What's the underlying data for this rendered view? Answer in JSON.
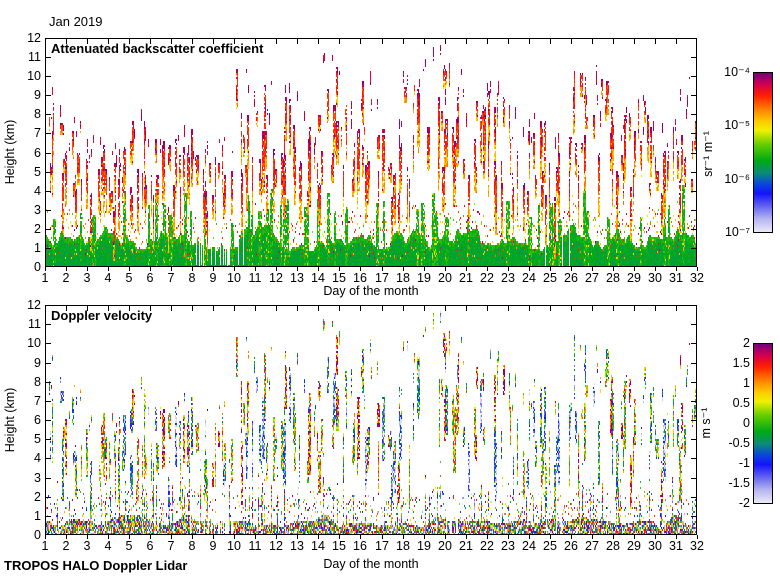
{
  "figure": {
    "suptitle": "Jan 2019",
    "footer": "TROPOS HALO Doppler Lidar",
    "background": "#ffffff"
  },
  "axes": {
    "xlabel": "Day of the month",
    "ylabel": "Height (km)",
    "x_tick_labels": [
      1,
      2,
      3,
      4,
      5,
      6,
      7,
      8,
      9,
      10,
      11,
      12,
      13,
      14,
      15,
      16,
      17,
      18,
      19,
      20,
      21,
      22,
      23,
      24,
      25,
      26,
      27,
      28,
      29,
      30,
      31,
      32
    ],
    "y_tick_labels": [
      0,
      1,
      2,
      3,
      4,
      5,
      6,
      7,
      8,
      9,
      10,
      11,
      12
    ],
    "x_range": [
      1,
      32
    ],
    "y_range": [
      0,
      12
    ]
  },
  "panels": [
    {
      "title": "Attenuated backscatter coefficient",
      "colorbar": {
        "unit": "sr⁻¹ m⁻¹",
        "scale": "log10",
        "tick_labels": [
          "10⁻⁴",
          "10⁻⁵",
          "10⁻⁶",
          "10⁻⁷"
        ],
        "range": [
          "1e-7",
          "1e-4"
        ]
      }
    },
    {
      "title": "Doppler velocity",
      "colorbar": {
        "unit": "m s⁻¹",
        "scale": "linear",
        "tick_labels": [
          "2",
          "1.5",
          "1",
          "0.5",
          "0",
          "-0.5",
          "-1",
          "-1.5",
          "-2"
        ],
        "range": [
          -2,
          2
        ]
      }
    }
  ],
  "colormap": {
    "stops": [
      [
        0.0,
        "#EAE6F6"
      ],
      [
        0.08,
        "#B4B4F0"
      ],
      [
        0.16,
        "#6464F0"
      ],
      [
        0.24,
        "#1414FA"
      ],
      [
        0.3,
        "#0A46DC"
      ],
      [
        0.37,
        "#0A8C78"
      ],
      [
        0.45,
        "#00AA14"
      ],
      [
        0.55,
        "#64CC00"
      ],
      [
        0.64,
        "#F0F000"
      ],
      [
        0.7,
        "#FFC800"
      ],
      [
        0.78,
        "#FF7800"
      ],
      [
        0.86,
        "#FF1E00"
      ],
      [
        0.93,
        "#D20050"
      ],
      [
        1.0,
        "#780078"
      ]
    ]
  },
  "chart_data": {
    "type": "heatmap",
    "title": "Jan 2019",
    "xlabel": "Day of the month",
    "ylabel": "Height (km)",
    "x_range": [
      1,
      32
    ],
    "y_range": [
      0,
      12
    ],
    "grid": false,
    "instrument": "TROPOS HALO Doppler Lidar",
    "days": [
      1,
      2,
      3,
      4,
      5,
      6,
      7,
      8,
      9,
      10,
      11,
      12,
      13,
      14,
      15,
      16,
      17,
      18,
      19,
      20,
      21,
      22,
      23,
      24,
      25,
      26,
      27,
      28,
      29,
      30,
      31
    ],
    "cloud_top_km": [
      9.3,
      8.0,
      7.0,
      6.5,
      8.0,
      7.2,
      7.5,
      6.5,
      7.0,
      10.5,
      10.0,
      9.5,
      8.0,
      11.2,
      9.0,
      10.0,
      8.0,
      10.0,
      11.5,
      11.0,
      9.0,
      9.5,
      8.5,
      8.0,
      7.5,
      10.5,
      10.2,
      8.5,
      9.0,
      8.0,
      10.0
    ],
    "cloud_cover": [
      0.6,
      0.6,
      0.5,
      0.5,
      0.6,
      0.6,
      0.5,
      0.4,
      0.2,
      0.55,
      0.6,
      0.6,
      0.5,
      0.5,
      0.6,
      0.5,
      0.5,
      0.6,
      0.5,
      0.45,
      0.5,
      0.5,
      0.5,
      0.5,
      0.35,
      0.5,
      0.6,
      0.6,
      0.5,
      0.45,
      0.6
    ],
    "aerosol_top_km": [
      1.8,
      1.6,
      1.5,
      1.6,
      1.7,
      1.9,
      1.6,
      1.3,
      0.8,
      2.2,
      1.8,
      1.6,
      1.5,
      1.6,
      1.8,
      1.7,
      1.6,
      1.8,
      1.6,
      1.4,
      1.5,
      1.6,
      1.8,
      1.6,
      1.4,
      2.0,
      1.8,
      1.7,
      1.6,
      1.5,
      1.8
    ],
    "aerosol_cover": [
      1,
      1,
      1,
      1,
      1,
      1,
      1,
      0.85,
      0.45,
      1,
      1,
      1,
      1,
      1,
      1,
      1,
      1,
      1,
      1,
      0.9,
      1,
      1,
      1,
      1,
      0.9,
      1,
      1,
      1,
      1,
      1,
      1
    ],
    "panels": [
      {
        "name": "attenuated_backscatter_coefficient",
        "unit": "sr⁻¹ m⁻¹",
        "scale": "log10",
        "value_range": [
          "1e-7",
          "1e-4"
        ]
      },
      {
        "name": "doppler_velocity",
        "unit": "m s⁻¹",
        "scale": "linear",
        "value_range": [
          -2,
          2
        ]
      }
    ]
  }
}
